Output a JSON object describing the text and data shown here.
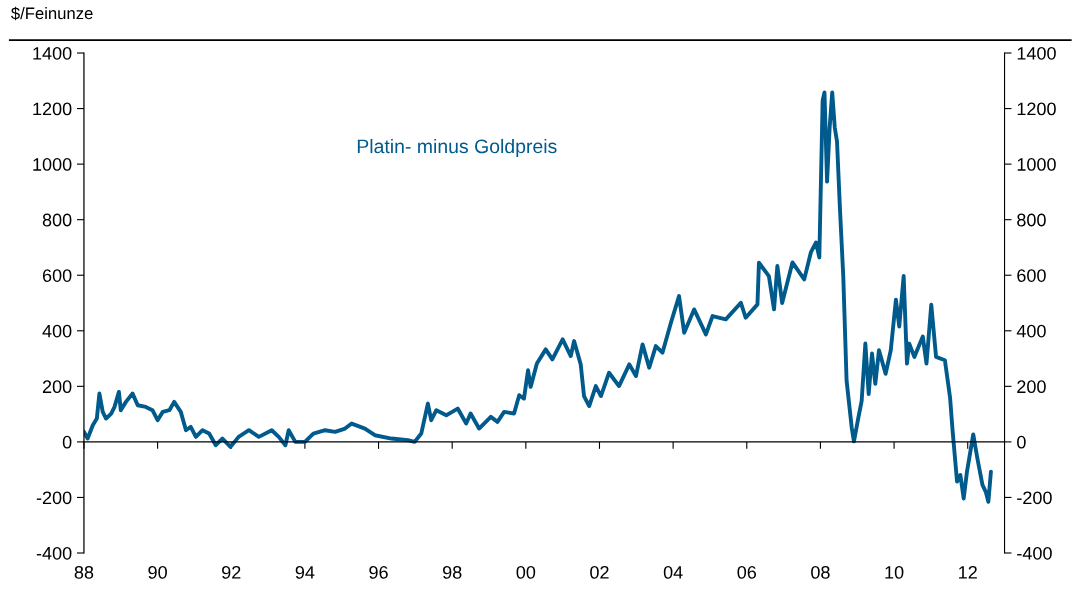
{
  "chart_data": {
    "type": "line",
    "ylabel": "$/Feinunze",
    "xlim": [
      1988,
      2013
    ],
    "xticks": [
      {
        "value": 1988,
        "label": "88"
      },
      {
        "value": 1990,
        "label": "90"
      },
      {
        "value": 1992,
        "label": "92"
      },
      {
        "value": 1994,
        "label": "94"
      },
      {
        "value": 1996,
        "label": "96"
      },
      {
        "value": 1998,
        "label": "98"
      },
      {
        "value": 2000,
        "label": "00"
      },
      {
        "value": 2002,
        "label": "02"
      },
      {
        "value": 2004,
        "label": "04"
      },
      {
        "value": 2006,
        "label": "06"
      },
      {
        "value": 2008,
        "label": "08"
      },
      {
        "value": 2010,
        "label": "10"
      },
      {
        "value": 2012,
        "label": "12"
      }
    ],
    "ylim": [
      -400,
      1400
    ],
    "yticks": [
      -400,
      -200,
      0,
      200,
      400,
      600,
      800,
      1000,
      1200,
      1400
    ],
    "y2lim": [
      -400,
      1400
    ],
    "y2ticks": [
      -400,
      -200,
      0,
      200,
      400,
      600,
      800,
      1000,
      1200,
      1400
    ],
    "legend": false,
    "marker": "none",
    "line_style": "solid",
    "series": [
      {
        "name": "Platin- minus Goldpreis",
        "color": "#005a8c",
        "x": [
          1988.0,
          1988.1,
          1988.24,
          1988.35,
          1988.42,
          1988.51,
          1988.6,
          1988.74,
          1988.83,
          1988.95,
          1989.0,
          1989.14,
          1989.32,
          1989.46,
          1989.68,
          1989.86,
          1990.0,
          1990.14,
          1990.32,
          1990.45,
          1990.63,
          1990.77,
          1990.9,
          1991.04,
          1991.22,
          1991.4,
          1991.58,
          1991.76,
          1991.98,
          1992.2,
          1992.48,
          1992.75,
          1993.1,
          1993.29,
          1993.47,
          1993.56,
          1993.74,
          1994.0,
          1994.23,
          1994.55,
          1994.82,
          1995.09,
          1995.27,
          1995.63,
          1995.9,
          1996.35,
          1996.8,
          1996.98,
          1997.16,
          1997.34,
          1997.43,
          1997.57,
          1997.84,
          1998.0,
          1998.15,
          1998.38,
          1998.5,
          1998.73,
          1999.05,
          1999.23,
          1999.41,
          1999.68,
          1999.82,
          1999.95,
          2000.06,
          2000.13,
          2000.3,
          2000.54,
          2000.72,
          2001.0,
          2001.22,
          2001.31,
          2001.49,
          2001.58,
          2001.72,
          2001.9,
          2002.04,
          2002.26,
          2002.53,
          2002.81,
          2002.99,
          2003.17,
          2003.35,
          2003.53,
          2003.71,
          2003.94,
          2004.16,
          2004.3,
          2004.57,
          2004.89,
          2005.07,
          2005.43,
          2005.84,
          2005.97,
          2006.29,
          2006.33,
          2006.6,
          2006.74,
          2006.83,
          2006.96,
          2007.24,
          2007.56,
          2007.74,
          2007.88,
          2007.97,
          2008.06,
          2008.11,
          2008.18,
          2008.25,
          2008.32,
          2008.39,
          2008.45,
          2008.53,
          2008.62,
          2008.71,
          2008.85,
          2008.91,
          2009.03,
          2009.12,
          2009.22,
          2009.31,
          2009.4,
          2009.49,
          2009.59,
          2009.77,
          2009.91,
          2010.05,
          2010.14,
          2010.26,
          2010.35,
          2010.41,
          2010.55,
          2010.78,
          2010.88,
          2011.01,
          2011.14,
          2011.38,
          2011.52,
          2011.59,
          2011.71,
          2011.8,
          2011.89,
          2011.98,
          2012.15,
          2012.26,
          2012.4,
          2012.49,
          2012.56,
          2012.63
        ],
        "values": [
          36,
          12,
          60,
          84,
          174,
          108,
          84,
          102,
          126,
          180,
          114,
          144,
          174,
          132,
          126,
          114,
          78,
          108,
          114,
          144,
          108,
          42,
          54,
          18,
          42,
          30,
          -12,
          12,
          -18,
          18,
          42,
          18,
          42,
          18,
          -12,
          42,
          0,
          0,
          30,
          42,
          36,
          48,
          66,
          48,
          24,
          12,
          6,
          0,
          30,
          138,
          78,
          114,
          96,
          108,
          120,
          66,
          102,
          48,
          90,
          72,
          108,
          102,
          168,
          156,
          258,
          198,
          282,
          333,
          297,
          369,
          309,
          363,
          279,
          165,
          129,
          201,
          165,
          249,
          201,
          279,
          237,
          351,
          267,
          345,
          321,
          429,
          525,
          393,
          477,
          387,
          453,
          441,
          501,
          447,
          495,
          645,
          597,
          477,
          633,
          500,
          646,
          585,
          682,
          718,
          664,
          1228,
          1258,
          937,
          1131,
          1258,
          1131,
          1082,
          840,
          597,
          221,
          51,
          2,
          87,
          148,
          354,
          172,
          318,
          209,
          330,
          245,
          330,
          512,
          415,
          597,
          282,
          354,
          306,
          379,
          282,
          494,
          306,
          294,
          160,
          39,
          -143,
          -119,
          -204,
          -107,
          27,
          -58,
          -155,
          -180,
          -216,
          -107
        ]
      }
    ]
  }
}
